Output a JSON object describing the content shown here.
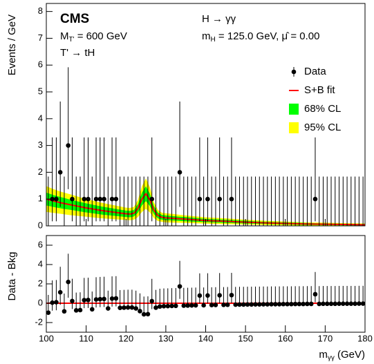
{
  "chart_data": [
    {
      "type": "errorbar_fit",
      "ylabel": "Events / GeV",
      "annotations": {
        "experiment": "CMS",
        "mass_main": "M",
        "mass_sub": "T'",
        "mass_rest": " = 600 GeV",
        "decay": "T' → tH",
        "channel": "H → γγ",
        "mh_main": "m",
        "mh_sub": "H",
        "mh_rest": " = 125.0 GeV, μ̂ = 0.00"
      },
      "legend": [
        "Data",
        "S+B fit",
        "68% CL",
        "95% CL"
      ],
      "data_color": "#000000",
      "fit_color": "#ff0000",
      "band68_color": "#00ff00",
      "band95_color": "#ffff00",
      "xlim": [
        100,
        180
      ],
      "xticks": [
        100,
        110,
        120,
        130,
        140,
        150,
        160,
        170,
        180
      ],
      "ylim": [
        0,
        8.3
      ],
      "yticks": [
        0,
        1,
        2,
        3,
        4,
        5,
        6,
        7,
        8
      ],
      "x": [
        100.5,
        101.5,
        102.5,
        103.5,
        104.5,
        105.5,
        106.5,
        107.5,
        108.5,
        109.5,
        110.5,
        111.5,
        112.5,
        113.5,
        114.5,
        115.5,
        116.5,
        117.5,
        118.5,
        119.5,
        120.5,
        121.5,
        122.5,
        123.5,
        124.5,
        125.5,
        126.5,
        127.5,
        128.5,
        129.5,
        130.5,
        131.5,
        132.5,
        133.5,
        134.5,
        135.5,
        136.5,
        137.5,
        138.5,
        139.5,
        140.5,
        141.5,
        142.5,
        143.5,
        144.5,
        145.5,
        146.5,
        147.5,
        148.5,
        149.5,
        150.5,
        151.5,
        152.5,
        153.5,
        154.5,
        155.5,
        156.5,
        157.5,
        158.5,
        159.5,
        160.5,
        161.5,
        162.5,
        163.5,
        164.5,
        165.5,
        166.5,
        167.5,
        168.5,
        169.5,
        170.5,
        171.5,
        172.5,
        173.5,
        174.5,
        175.5,
        176.5,
        177.5,
        178.5,
        179.5
      ],
      "values": [
        0,
        1,
        1,
        2,
        0,
        3,
        1,
        0,
        0,
        1,
        1,
        0,
        1,
        1,
        1,
        0,
        1,
        1,
        0,
        0,
        0,
        0,
        0,
        0,
        0,
        0,
        1,
        0,
        0,
        0,
        0,
        0,
        0,
        2,
        0,
        0,
        0,
        0,
        1,
        0,
        1,
        0,
        0,
        1,
        0,
        0,
        1,
        0,
        0,
        0,
        0,
        0,
        0,
        0,
        0,
        0,
        0,
        0,
        0,
        0,
        0,
        0,
        0,
        0,
        0,
        0,
        0,
        1,
        0,
        0,
        0,
        0,
        0,
        0,
        0,
        0,
        0,
        0,
        0,
        0
      ],
      "yerr_low": [
        0,
        0.83,
        0.83,
        1.29,
        0,
        1.63,
        0.83,
        0,
        0,
        0.83,
        0.83,
        0,
        0.83,
        0.83,
        0.83,
        0,
        0.83,
        0.83,
        0,
        0,
        0,
        0,
        0,
        0,
        0,
        0,
        0.83,
        0,
        0,
        0,
        0,
        0,
        0,
        1.29,
        0,
        0,
        0,
        0,
        0.83,
        0,
        0.83,
        0,
        0,
        0.83,
        0,
        0,
        0.83,
        0,
        0,
        0,
        0,
        0,
        0,
        0,
        0,
        0,
        0,
        0,
        0,
        0,
        0,
        0,
        0,
        0,
        0,
        0,
        0,
        0.83,
        0,
        0,
        0,
        0,
        0,
        0,
        0,
        0,
        0,
        0,
        0,
        0
      ],
      "yerr_high": [
        1.84,
        2.3,
        2.3,
        2.64,
        1.84,
        2.92,
        2.3,
        1.84,
        1.84,
        2.3,
        2.3,
        1.84,
        2.3,
        2.3,
        2.3,
        1.84,
        2.3,
        2.3,
        1.84,
        1.84,
        1.84,
        1.84,
        1.84,
        1.84,
        1.84,
        1.84,
        2.3,
        1.84,
        1.84,
        1.84,
        1.84,
        1.84,
        1.84,
        2.64,
        1.84,
        1.84,
        1.84,
        1.84,
        2.3,
        1.84,
        2.3,
        1.84,
        1.84,
        2.3,
        1.84,
        1.84,
        2.3,
        1.84,
        1.84,
        1.84,
        1.84,
        1.84,
        1.84,
        1.84,
        1.84,
        1.84,
        1.84,
        1.84,
        1.84,
        1.84,
        1.84,
        1.84,
        1.84,
        1.84,
        1.84,
        1.84,
        1.84,
        2.3,
        1.84,
        1.84,
        1.84,
        1.84,
        1.84,
        1.84,
        1.84,
        1.84,
        1.84,
        1.84,
        1.84,
        1.84
      ],
      "fit_x": [
        100,
        102,
        104,
        106,
        108,
        110,
        112,
        114,
        116,
        118,
        120,
        121,
        122,
        123,
        124,
        125,
        126,
        127,
        128,
        129,
        130,
        132,
        135,
        140,
        145,
        150,
        155,
        160,
        165,
        170,
        175,
        180
      ],
      "fit_y": [
        1.0,
        0.92,
        0.85,
        0.79,
        0.73,
        0.67,
        0.62,
        0.57,
        0.53,
        0.49,
        0.45,
        0.44,
        0.47,
        0.65,
        1.0,
        1.2,
        0.97,
        0.59,
        0.39,
        0.32,
        0.3,
        0.28,
        0.25,
        0.2,
        0.17,
        0.14,
        0.11,
        0.09,
        0.07,
        0.06,
        0.05,
        0.04
      ],
      "band68": [
        0.24,
        0.22,
        0.21,
        0.19,
        0.18,
        0.17,
        0.16,
        0.15,
        0.14,
        0.13,
        0.12,
        0.12,
        0.12,
        0.16,
        0.24,
        0.28,
        0.23,
        0.15,
        0.11,
        0.09,
        0.09,
        0.08,
        0.08,
        0.06,
        0.06,
        0.05,
        0.04,
        0.04,
        0.04,
        0.03,
        0.03,
        0.03
      ],
      "band95": [
        0.48,
        0.44,
        0.41,
        0.39,
        0.36,
        0.33,
        0.31,
        0.29,
        0.27,
        0.25,
        0.23,
        0.23,
        0.24,
        0.32,
        0.48,
        0.57,
        0.47,
        0.3,
        0.21,
        0.17,
        0.17,
        0.16,
        0.14,
        0.12,
        0.11,
        0.09,
        0.08,
        0.07,
        0.06,
        0.06,
        0.05,
        0.05
      ]
    },
    {
      "type": "errorbar_residual",
      "ylabel": "Data - Bkg",
      "xlabel_main": "m",
      "xlabel_sub": "γγ",
      "xlabel_rest": " (GeV)",
      "data_color": "#000000",
      "fit_color": "#ff0000",
      "hline": 0,
      "xlim": [
        100,
        180
      ],
      "xticks": [
        100,
        110,
        120,
        130,
        140,
        150,
        160,
        170,
        180
      ],
      "ylim": [
        -3,
        7
      ],
      "yticks": [
        -2,
        0,
        2,
        4,
        6
      ],
      "x": [
        100.5,
        101.5,
        102.5,
        103.5,
        104.5,
        105.5,
        106.5,
        107.5,
        108.5,
        109.5,
        110.5,
        111.5,
        112.5,
        113.5,
        114.5,
        115.5,
        116.5,
        117.5,
        118.5,
        119.5,
        120.5,
        121.5,
        122.5,
        123.5,
        124.5,
        125.5,
        126.5,
        127.5,
        128.5,
        129.5,
        130.5,
        131.5,
        132.5,
        133.5,
        134.5,
        135.5,
        136.5,
        137.5,
        138.5,
        139.5,
        140.5,
        141.5,
        142.5,
        143.5,
        144.5,
        145.5,
        146.5,
        147.5,
        148.5,
        149.5,
        150.5,
        151.5,
        152.5,
        153.5,
        154.5,
        155.5,
        156.5,
        157.5,
        158.5,
        159.5,
        160.5,
        161.5,
        162.5,
        163.5,
        164.5,
        165.5,
        166.5,
        167.5,
        168.5,
        169.5,
        170.5,
        171.5,
        172.5,
        173.5,
        174.5,
        175.5,
        176.5,
        177.5,
        178.5,
        179.5
      ],
      "values": [
        -0.98,
        0.06,
        0.1,
        1.13,
        -0.84,
        2.2,
        0.23,
        -0.74,
        -0.71,
        0.32,
        0.34,
        -0.63,
        0.39,
        0.42,
        0.44,
        -0.54,
        0.48,
        0.5,
        -0.48,
        -0.46,
        -0.44,
        -0.44,
        -0.54,
        -0.82,
        -1.15,
        -1.13,
        0.22,
        -0.46,
        -0.34,
        -0.31,
        -0.3,
        -0.28,
        -0.27,
        1.74,
        -0.25,
        -0.24,
        -0.23,
        -0.22,
        0.79,
        -0.21,
        0.8,
        -0.19,
        -0.18,
        0.82,
        -0.17,
        -0.16,
        0.84,
        -0.15,
        -0.14,
        -0.14,
        -0.13,
        -0.13,
        -0.12,
        -0.12,
        -0.11,
        -0.11,
        -0.1,
        -0.1,
        -0.1,
        -0.09,
        -0.09,
        -0.09,
        -0.08,
        -0.08,
        -0.08,
        -0.07,
        -0.07,
        0.93,
        -0.07,
        -0.06,
        -0.06,
        -0.06,
        -0.06,
        -0.05,
        -0.05,
        -0.05,
        -0.05,
        -0.05,
        -0.04,
        -0.04
      ],
      "yerr_low": [
        0,
        0.83,
        0.83,
        1.29,
        0,
        1.63,
        0.83,
        0,
        0,
        0.83,
        0.83,
        0,
        0.83,
        0.83,
        0.83,
        0,
        0.83,
        0.83,
        0,
        0,
        0,
        0,
        0,
        0,
        0,
        0,
        0.83,
        0,
        0,
        0,
        0,
        0,
        0,
        1.29,
        0,
        0,
        0,
        0,
        0.83,
        0,
        0.83,
        0,
        0,
        0.83,
        0,
        0,
        0.83,
        0,
        0,
        0,
        0,
        0,
        0,
        0,
        0,
        0,
        0,
        0,
        0,
        0,
        0,
        0,
        0,
        0,
        0,
        0,
        0,
        0.83,
        0,
        0,
        0,
        0,
        0,
        0,
        0,
        0,
        0,
        0,
        0,
        0
      ],
      "yerr_high": [
        1.84,
        2.3,
        2.3,
        2.64,
        1.84,
        2.92,
        2.3,
        1.84,
        1.84,
        2.3,
        2.3,
        1.84,
        2.3,
        2.3,
        2.3,
        1.84,
        2.3,
        2.3,
        1.84,
        1.84,
        1.84,
        1.84,
        1.84,
        1.84,
        1.84,
        1.84,
        2.3,
        1.84,
        1.84,
        1.84,
        1.84,
        1.84,
        1.84,
        2.64,
        1.84,
        1.84,
        1.84,
        1.84,
        2.3,
        1.84,
        2.3,
        1.84,
        1.84,
        2.3,
        1.84,
        1.84,
        2.3,
        1.84,
        1.84,
        1.84,
        1.84,
        1.84,
        1.84,
        1.84,
        1.84,
        1.84,
        1.84,
        1.84,
        1.84,
        1.84,
        1.84,
        1.84,
        1.84,
        1.84,
        1.84,
        1.84,
        1.84,
        2.3,
        1.84,
        1.84,
        1.84,
        1.84,
        1.84,
        1.84,
        1.84,
        1.84,
        1.84,
        1.84,
        1.84,
        1.84
      ]
    }
  ]
}
